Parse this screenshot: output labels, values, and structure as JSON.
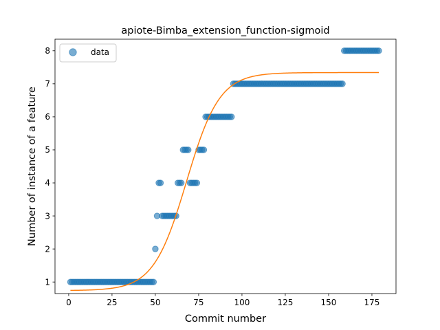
{
  "chart_data": {
    "type": "scatter",
    "title": "apiote-Bimba_extension_function-sigmoid",
    "xlabel": "Commit number",
    "ylabel": "Number of instance of a feature",
    "xlim": [
      -7.9,
      188.9
    ],
    "ylim": [
      0.65,
      8.35
    ],
    "xticks": [
      0,
      25,
      50,
      75,
      100,
      125,
      150,
      175
    ],
    "yticks": [
      1,
      2,
      3,
      4,
      5,
      6,
      7,
      8
    ],
    "legend": {
      "entries": [
        "data"
      ],
      "placement": "upper-left"
    },
    "colors": {
      "data": "#1f77b4",
      "fit": "#ff7f0e"
    },
    "series": [
      {
        "name": "data",
        "kind": "points",
        "runs": [
          {
            "x_start": 1,
            "x_end": 49,
            "y": 1
          },
          {
            "x_start": 50,
            "x_end": 50,
            "y": 2
          },
          {
            "x_start": 51,
            "x_end": 51,
            "y": 3
          },
          {
            "x_start": 52,
            "x_end": 53,
            "y": 4
          },
          {
            "x_start": 54,
            "x_end": 62,
            "y": 3
          },
          {
            "x_start": 63,
            "x_end": 65,
            "y": 4
          },
          {
            "x_start": 66,
            "x_end": 69,
            "y": 5
          },
          {
            "x_start": 70,
            "x_end": 74,
            "y": 4
          },
          {
            "x_start": 75,
            "x_end": 78,
            "y": 5
          },
          {
            "x_start": 79,
            "x_end": 94,
            "y": 6
          },
          {
            "x_start": 95,
            "x_end": 158,
            "y": 7
          },
          {
            "x_start": 159,
            "x_end": 179,
            "y": 8
          }
        ]
      },
      {
        "kind": "sigmoid-fit",
        "params": {
          "L": 6.6,
          "k": 0.105,
          "x0": 68,
          "b": 0.74
        },
        "x_range": [
          1,
          179
        ]
      }
    ]
  }
}
